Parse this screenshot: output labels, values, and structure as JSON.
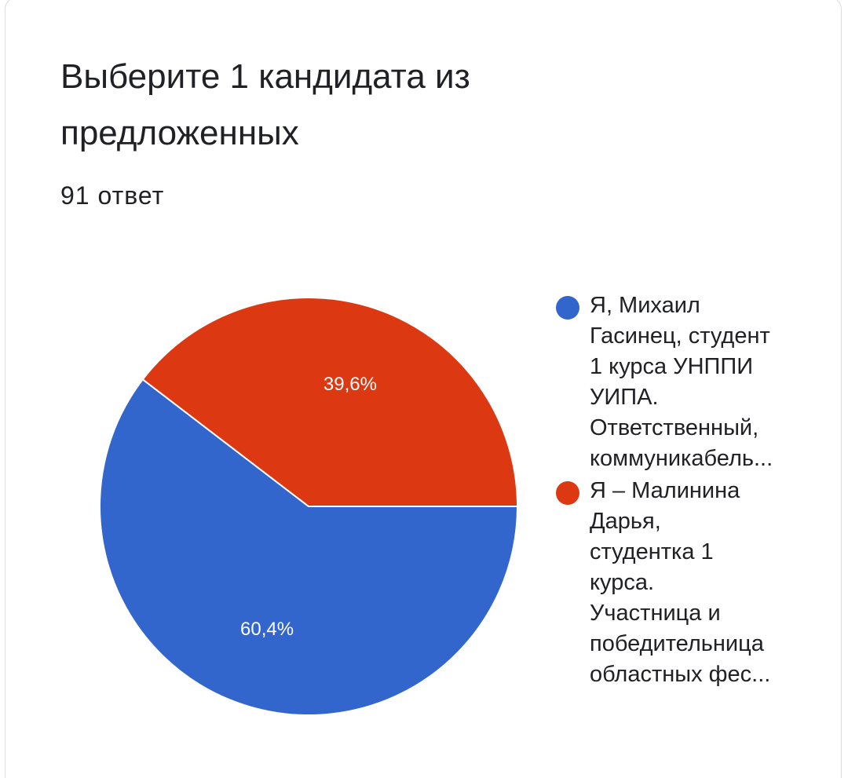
{
  "card": {
    "title": "Выберите 1 кандидата из предложенных",
    "responses": "91 ответ"
  },
  "chart_data": {
    "type": "pie",
    "title": "Выберите 1 кандидата из предложенных",
    "categories": [
      "Я, Михаил Гасинец, студент 1 курса УНППИ УИПА. Ответственный, коммуникабель...",
      "Я – Малинина Дарья, студентка 1 курса. Участница и победительница областных фес..."
    ],
    "values": [
      60.4,
      39.6
    ],
    "value_labels": [
      "60,4%",
      "39,6%"
    ],
    "colors": [
      "#3366cc",
      "#dc3912"
    ],
    "legend_position": "right"
  },
  "legend": [
    {
      "label": "Я, Михаил\nГасинец, студент\n1 курса УНППИ\nУИПА.\nОтветственный,\nкоммуникабель...",
      "color": "#3366cc"
    },
    {
      "label": "Я – Малинина\nДарья,\nстудентка 1\nкурса.\nУчастница и\nпобедительница\nобластных фес...",
      "color": "#dc3912"
    }
  ]
}
